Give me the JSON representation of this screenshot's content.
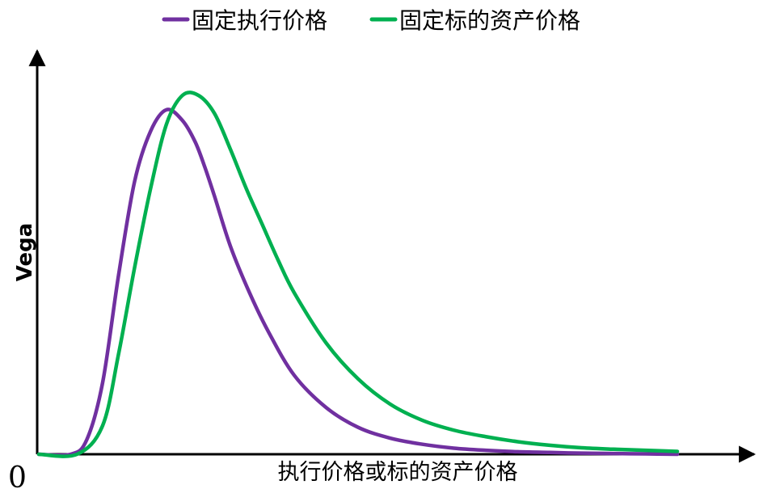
{
  "chart_data": {
    "type": "line",
    "title": "",
    "xlabel": "执行价格或标的资产价格",
    "ylabel": "Vega",
    "origin_label": "0",
    "xlim": [
      0,
      1
    ],
    "ylim": [
      0,
      1
    ],
    "ticks_shown": false,
    "grid": false,
    "legend_position": "top",
    "series": [
      {
        "name": "固定执行价格",
        "color": "#7030A0",
        "x": [
          0.0,
          0.05,
          0.075,
          0.1,
          0.125,
          0.15,
          0.175,
          0.2,
          0.225,
          0.245,
          0.26,
          0.275,
          0.3,
          0.33,
          0.36,
          0.4,
          0.45,
          0.5,
          0.55,
          0.6,
          0.65,
          0.7,
          0.75,
          0.8,
          0.85,
          0.9,
          0.95,
          1.0
        ],
        "y": [
          0.0,
          0.0,
          0.04,
          0.2,
          0.5,
          0.76,
          0.9,
          0.96,
          0.93,
          0.87,
          0.8,
          0.72,
          0.58,
          0.45,
          0.34,
          0.22,
          0.13,
          0.075,
          0.045,
          0.028,
          0.017,
          0.011,
          0.007,
          0.005,
          0.003,
          0.002,
          0.001,
          0.0
        ]
      },
      {
        "name": "固定标的资产价格",
        "color": "#00B050",
        "x": [
          0.0,
          0.06,
          0.1,
          0.125,
          0.15,
          0.175,
          0.2,
          0.225,
          0.25,
          0.275,
          0.3,
          0.325,
          0.35,
          0.375,
          0.4,
          0.45,
          0.5,
          0.55,
          0.6,
          0.65,
          0.7,
          0.75,
          0.8,
          0.85,
          0.9,
          0.95,
          1.0
        ],
        "y": [
          0.0,
          0.0,
          0.08,
          0.28,
          0.52,
          0.74,
          0.92,
          1.0,
          1.0,
          0.95,
          0.85,
          0.74,
          0.64,
          0.54,
          0.45,
          0.31,
          0.21,
          0.14,
          0.095,
          0.067,
          0.049,
          0.035,
          0.025,
          0.018,
          0.014,
          0.011,
          0.008
        ]
      }
    ]
  }
}
